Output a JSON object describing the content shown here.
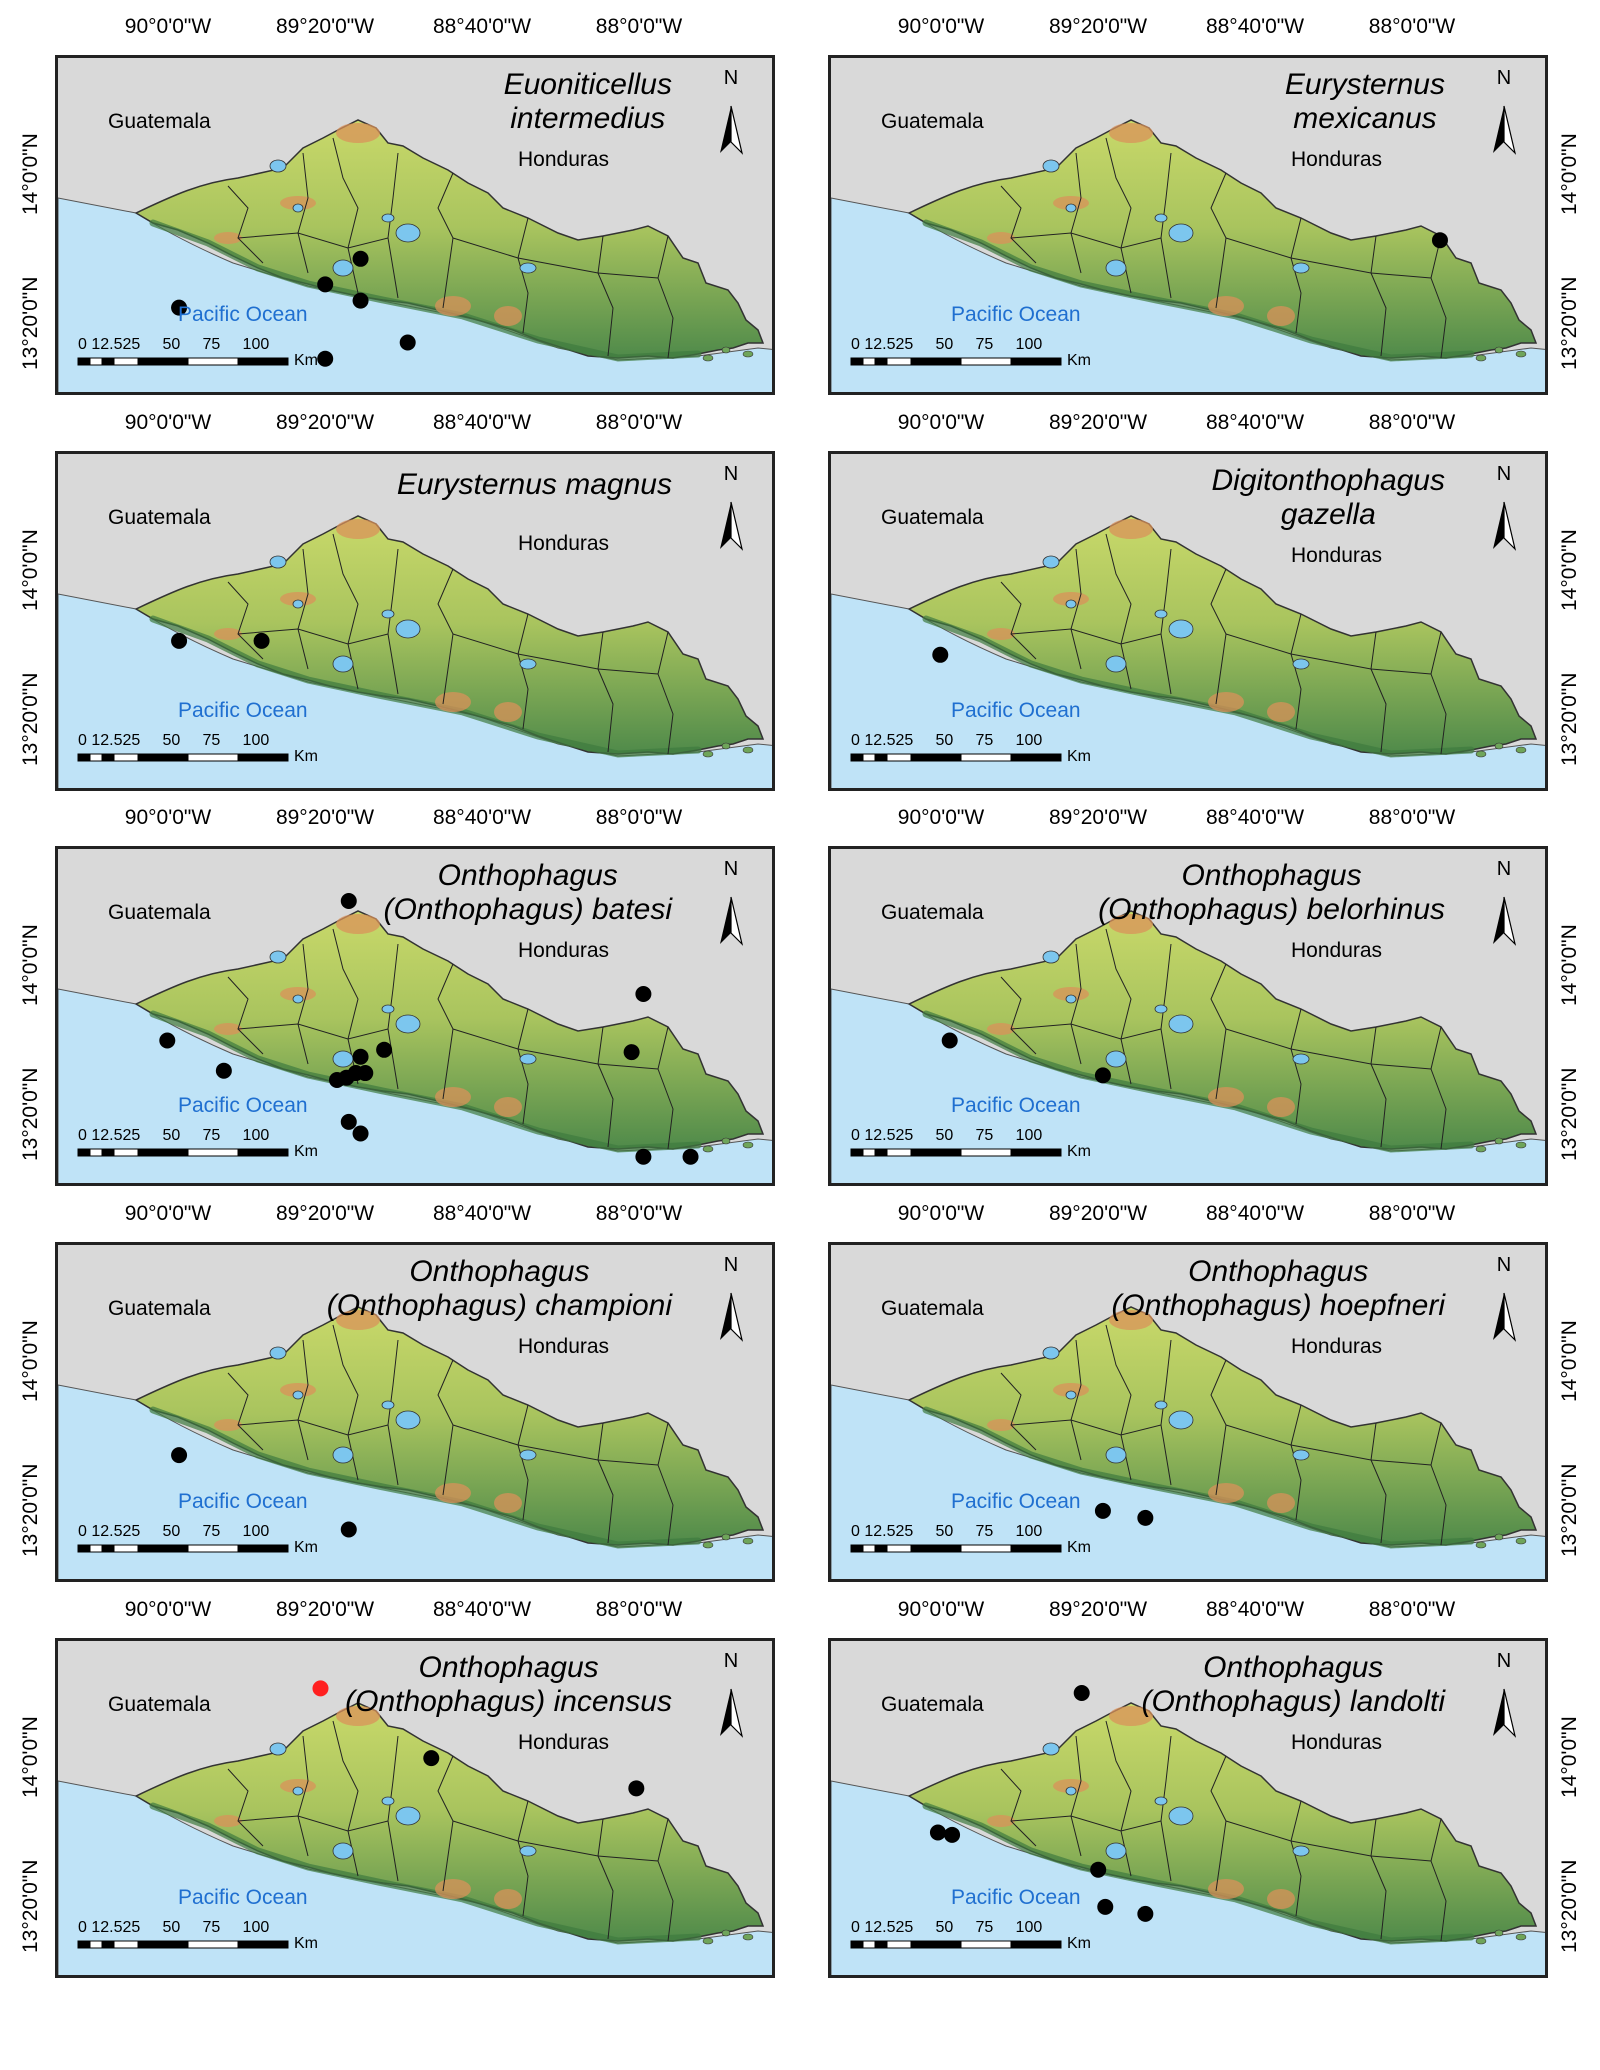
{
  "common": {
    "lon_ticks": [
      "90°0'0\"W",
      "89°20'0\"W",
      "88°40'0\"W",
      "88°0'0\"W"
    ],
    "lat_ticks": [
      "14°0'0\"N",
      "13°20'0\"N"
    ],
    "country_guatemala": "Guatemala",
    "country_honduras": "Honduras",
    "ocean": "Pacific Ocean",
    "scale_numbers": "0 12.525     50     75     100",
    "scale_unit": "Km",
    "north_letter": "N",
    "colors": {
      "ocean": "#bfe3f7",
      "land_background": "#d9d9d9",
      "record_point": "#000000",
      "highlight_point": "#ff2020"
    }
  },
  "maps": [
    {
      "title_line1": "Euoniticellus",
      "title_line2": "intermedius",
      "points": [
        [
          -89.97,
          13.55
        ],
        [
          -89.35,
          13.65
        ],
        [
          -89.35,
          13.33
        ],
        [
          -89.2,
          13.76
        ],
        [
          -89.2,
          13.58
        ],
        [
          -89.0,
          13.4
        ]
      ]
    },
    {
      "title_line1": "Eurysternus",
      "title_line2": "mexicanus",
      "points": [
        [
          -87.9,
          13.84
        ]
      ]
    },
    {
      "title_line1": "Eurysternus magnus",
      "title_line2": "",
      "points": [
        [
          -89.97,
          13.82
        ],
        [
          -89.62,
          13.82
        ]
      ]
    },
    {
      "title_line1": "Digitonthophagus",
      "title_line2": "gazella",
      "points": [
        [
          -90.02,
          13.76
        ]
      ]
    },
    {
      "title_line1": "Onthophagus",
      "title_line2": "(Onthophagus) batesi",
      "points": [
        [
          -89.25,
          14.4
        ],
        [
          -90.02,
          13.8
        ],
        [
          -89.78,
          13.67
        ],
        [
          -89.3,
          13.63
        ],
        [
          -89.26,
          13.64
        ],
        [
          -89.22,
          13.66
        ],
        [
          -89.2,
          13.73
        ],
        [
          -89.18,
          13.66
        ],
        [
          -89.1,
          13.76
        ],
        [
          -89.25,
          13.45
        ],
        [
          -89.2,
          13.4
        ],
        [
          -88.0,
          14.0
        ],
        [
          -88.05,
          13.75
        ],
        [
          -88.0,
          13.3
        ],
        [
          -87.8,
          13.3
        ]
      ]
    },
    {
      "title_line1": "Onthophagus",
      "title_line2": "(Onthophagus) belorhinus",
      "points": [
        [
          -89.98,
          13.8
        ],
        [
          -89.33,
          13.65
        ]
      ]
    },
    {
      "title_line1": "Onthophagus",
      "title_line2": "(Onthophagus) championi",
      "points": [
        [
          -89.97,
          13.72
        ],
        [
          -89.25,
          13.4
        ]
      ]
    },
    {
      "title_line1": "Onthophagus",
      "title_line2": "(Onthophagus) hoepfneri",
      "points": [
        [
          -89.33,
          13.48
        ],
        [
          -89.15,
          13.45
        ]
      ]
    },
    {
      "title_line1": "Onthophagus",
      "title_line2": "(Onthophagus) incensus",
      "points": [
        [
          -88.9,
          14.12
        ],
        [
          -88.03,
          13.99
        ]
      ],
      "highlight_points": [
        [
          -89.37,
          14.42
        ]
      ]
    },
    {
      "title_line1": "Onthophagus",
      "title_line2": "(Onthophagus) landolti",
      "points": [
        [
          -89.42,
          14.4
        ],
        [
          -90.03,
          13.8
        ],
        [
          -89.97,
          13.79
        ],
        [
          -89.35,
          13.64
        ],
        [
          -89.32,
          13.48
        ],
        [
          -89.15,
          13.45
        ]
      ]
    }
  ]
}
